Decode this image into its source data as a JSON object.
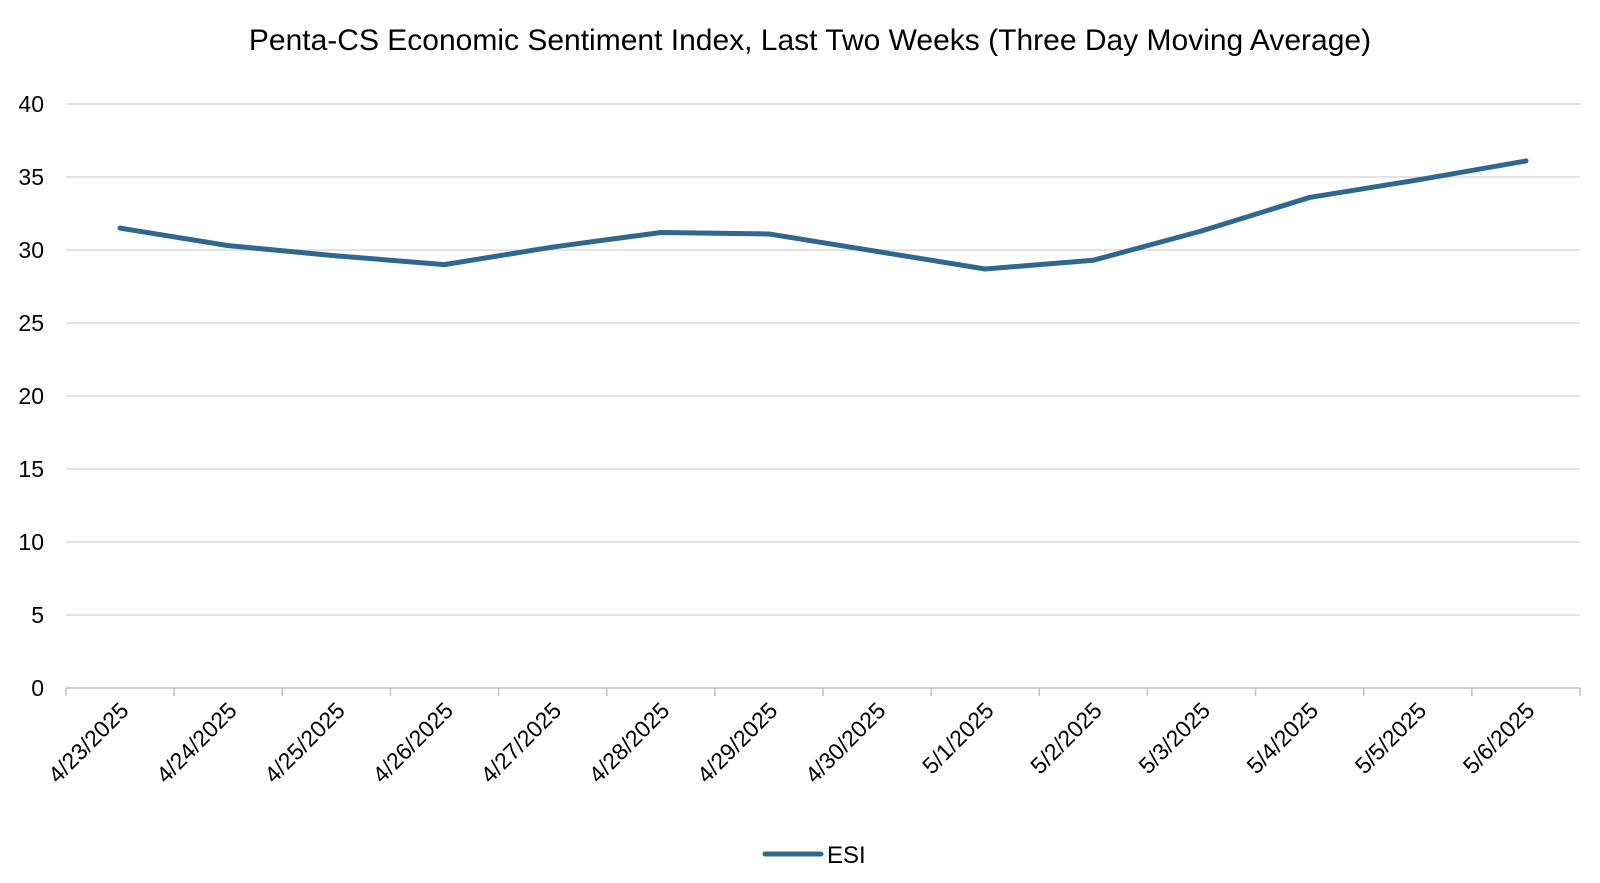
{
  "chart_data": {
    "type": "line",
    "title": "Penta-CS Economic Sentiment Index, Last Two Weeks (Three Day Moving Average)",
    "xlabel": "",
    "ylabel": "",
    "categories": [
      "4/23/2025",
      "4/24/2025",
      "4/25/2025",
      "4/26/2025",
      "4/27/2025",
      "4/28/2025",
      "4/29/2025",
      "4/30/2025",
      "5/1/2025",
      "5/2/2025",
      "5/3/2025",
      "5/4/2025",
      "5/5/2025",
      "5/6/2025"
    ],
    "series": [
      {
        "name": "ESI",
        "color": "#2e6790",
        "values": [
          31.5,
          30.3,
          29.6,
          29.0,
          30.2,
          31.2,
          31.1,
          29.9,
          28.7,
          29.3,
          31.3,
          33.6,
          34.8,
          36.1
        ]
      }
    ],
    "ylim": [
      0,
      40
    ],
    "yticks": [
      0,
      5,
      10,
      15,
      20,
      25,
      30,
      35,
      40
    ],
    "grid": true,
    "gridColor": "#d9d9d9",
    "legend_position": "bottom"
  }
}
